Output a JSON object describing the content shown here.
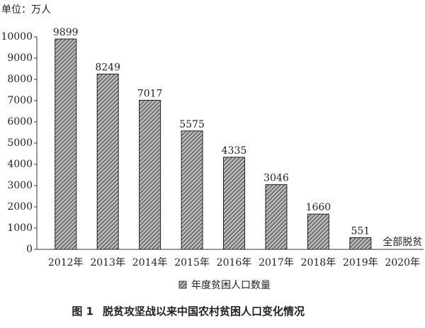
{
  "chart_data": {
    "type": "bar",
    "unit_label": "单位：万人",
    "figure_label": "图 1",
    "title": "脱贫攻坚战以来中国农村贫困人口变化情况",
    "categories": [
      "2012年",
      "2013年",
      "2014年",
      "2015年",
      "2016年",
      "2017年",
      "2018年",
      "2019年",
      "2020年"
    ],
    "series": [
      {
        "name": "年度贫困人口数量",
        "color": "#555555",
        "values": [
          9899,
          8249,
          7017,
          5575,
          4335,
          3046,
          1660,
          551,
          null
        ]
      }
    ],
    "annotation": "全部脱贫",
    "ylim": [
      0,
      10000
    ],
    "yticks": [
      0,
      1000,
      2000,
      3000,
      4000,
      5000,
      6000,
      7000,
      8000,
      9000,
      10000
    ],
    "grid": false
  }
}
